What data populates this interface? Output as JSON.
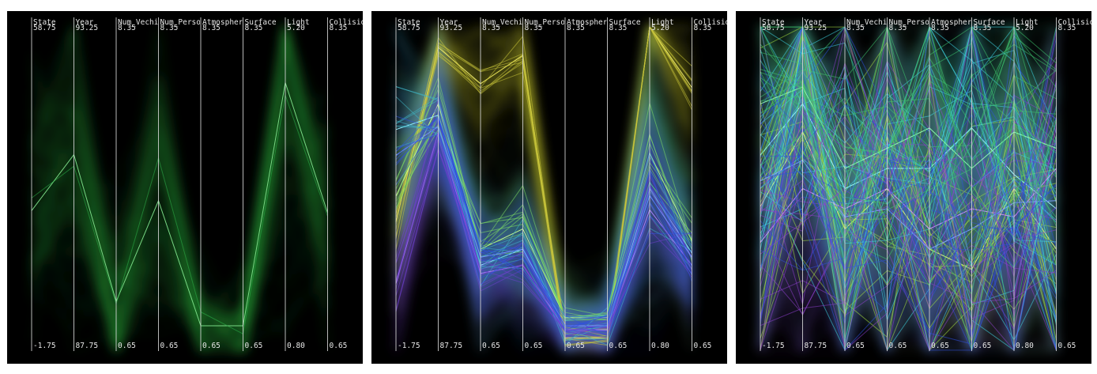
{
  "chart_data": [
    {
      "type": "parallel-coordinates",
      "colors": [
        "#2db34a"
      ],
      "axes": [
        {
          "name": "State",
          "max_label": "58.75",
          "min_label": "-1.75",
          "range": [
            -1.75,
            58.75
          ]
        },
        {
          "name": "Year",
          "max_label": "93.25",
          "min_label": "87.75",
          "range": [
            87.75,
            93.25
          ]
        },
        {
          "name": "Num_Vechi",
          "max_label": "8.35",
          "min_label": "0.65",
          "range": [
            0.65,
            8.35
          ]
        },
        {
          "name": "Num_Perso",
          "max_label": "8.35",
          "min_label": "0.65",
          "range": [
            0.65,
            8.35
          ]
        },
        {
          "name": "Atmospher",
          "max_label": "8.35",
          "min_label": "0.65",
          "range": [
            0.65,
            8.35
          ]
        },
        {
          "name": "Surface",
          "max_label": "8.35",
          "min_label": "0.65",
          "range": [
            0.65,
            8.35
          ]
        },
        {
          "name": "Light",
          "max_label": "5.20",
          "min_label": "0.80",
          "range": [
            0.8,
            5.2
          ]
        },
        {
          "name": "Collisio",
          "max_label": "8.35",
          "min_label": "0.65",
          "range": [
            0.65,
            8.35
          ]
        }
      ],
      "clusters": [
        {
          "color": "#2db34a",
          "bright": "#7de08a",
          "center": [
            24.2,
            91.1,
            1.7,
            4.2,
            1.1,
            1.1,
            4.5,
            3.9
          ],
          "spread": [
            15,
            1.7,
            1.4,
            2.0,
            0.7,
            0.7,
            1.5,
            1.4
          ]
        }
      ]
    },
    {
      "type": "parallel-coordinates",
      "colors": [
        "#c8c43a",
        "#7fe060",
        "#40b8c8",
        "#7040d0",
        "#3050e0"
      ],
      "axes": [
        {
          "name": "State",
          "max_label": "58.75",
          "min_label": "-1.75",
          "range": [
            -1.75,
            58.75
          ]
        },
        {
          "name": "Year",
          "max_label": "93.25",
          "min_label": "87.75",
          "range": [
            87.75,
            93.25
          ]
        },
        {
          "name": "Num_Vechi",
          "max_label": "8.35",
          "min_label": "0.65",
          "range": [
            0.65,
            8.35
          ]
        },
        {
          "name": "Num_Perso",
          "max_label": "8.35",
          "min_label": "0.65",
          "range": [
            0.65,
            8.35
          ]
        },
        {
          "name": "Atmospher",
          "max_label": "8.35",
          "min_label": "0.65",
          "range": [
            0.65,
            8.35
          ]
        },
        {
          "name": "Surface",
          "max_label": "8.35",
          "min_label": "0.65",
          "range": [
            0.65,
            8.35
          ]
        },
        {
          "name": "Light",
          "max_label": "5.20",
          "min_label": "0.80",
          "range": [
            0.8,
            5.2
          ]
        },
        {
          "name": "Collisio",
          "max_label": "8.35",
          "min_label": "0.65",
          "range": [
            0.65,
            8.35
          ]
        }
      ],
      "clusters": [
        {
          "color": "#c8c43a",
          "bright": "#f4f070",
          "center": [
            22,
            93.0,
            7.1,
            7.8,
            0.8,
            0.8,
            6.1,
            7.0
          ],
          "spread": [
            8,
            0.4,
            0.9,
            0.7,
            0.3,
            0.3,
            0.9,
            1.0
          ]
        },
        {
          "color": "#7fe060",
          "bright": "#c8ff90",
          "center": [
            27,
            92.0,
            3.0,
            3.5,
            1.3,
            1.3,
            3.5,
            3.2
          ],
          "spread": [
            12,
            0.8,
            1.0,
            1.0,
            0.6,
            0.6,
            1.0,
            1.0
          ]
        },
        {
          "color": "#40b8c8",
          "bright": "#90f0ff",
          "center": [
            40,
            91.8,
            2.6,
            3.0,
            1.1,
            1.1,
            3.0,
            2.9
          ],
          "spread": [
            12,
            0.8,
            0.9,
            0.9,
            0.5,
            0.5,
            0.9,
            0.9
          ]
        },
        {
          "color": "#7040d0",
          "bright": "#b080ff",
          "center": [
            10,
            91.5,
            2.4,
            2.6,
            1.0,
            1.0,
            2.7,
            2.6
          ],
          "spread": [
            8,
            0.8,
            0.8,
            0.8,
            0.4,
            0.4,
            0.8,
            0.8
          ]
        },
        {
          "color": "#3050e0",
          "bright": "#7090ff",
          "center": [
            35,
            91.6,
            2.8,
            3.0,
            1.1,
            1.1,
            2.9,
            2.8
          ],
          "spread": [
            10,
            0.8,
            0.9,
            0.9,
            0.5,
            0.5,
            0.9,
            0.9
          ]
        }
      ]
    },
    {
      "type": "parallel-coordinates",
      "colors": [
        "#a6e040",
        "#40d8e8",
        "#9040d0",
        "#3050e0",
        "#40c870"
      ],
      "axes": [
        {
          "name": "State",
          "max_label": "58.75",
          "min_label": "-1.75",
          "range": [
            -1.75,
            58.75
          ]
        },
        {
          "name": "Year",
          "max_label": "93.25",
          "min_label": "87.75",
          "range": [
            87.75,
            93.25
          ]
        },
        {
          "name": "Num_Vechi",
          "max_label": "8.35",
          "min_label": "0.65",
          "range": [
            0.65,
            8.35
          ]
        },
        {
          "name": "Num_Perso",
          "max_label": "8.35",
          "min_label": "0.65",
          "range": [
            0.65,
            8.35
          ]
        },
        {
          "name": "Atmospher",
          "max_label": "8.35",
          "min_label": "0.65",
          "range": [
            0.65,
            8.35
          ]
        },
        {
          "name": "Surface",
          "max_label": "8.35",
          "min_label": "0.65",
          "range": [
            0.65,
            8.35
          ]
        },
        {
          "name": "Light",
          "max_label": "5.20",
          "min_label": "0.80",
          "range": [
            0.8,
            5.2
          ]
        },
        {
          "name": "Collisio",
          "max_label": "8.35",
          "min_label": "0.65",
          "range": [
            0.65,
            8.35
          ]
        }
      ],
      "clusters": [
        {
          "color": "#a6e040",
          "bright": "#e0ff80",
          "center": [
            25,
            91.5,
            3.5,
            4.5,
            3.0,
            2.5,
            3.0,
            3.0
          ],
          "spread": [
            20,
            1.6,
            2.2,
            2.5,
            2.5,
            2.2,
            1.4,
            2.0
          ]
        },
        {
          "color": "#40d8e8",
          "bright": "#a0faff",
          "center": [
            35,
            92.0,
            4.5,
            5.0,
            5.0,
            6.0,
            3.2,
            4.0
          ],
          "spread": [
            18,
            1.3,
            2.2,
            2.4,
            2.5,
            2.3,
            1.3,
            2.2
          ]
        },
        {
          "color": "#9040d0",
          "bright": "#d090ff",
          "center": [
            18,
            90.5,
            4.0,
            4.5,
            3.5,
            4.0,
            2.6,
            5.0
          ],
          "spread": [
            18,
            1.8,
            2.5,
            2.6,
            2.6,
            2.5,
            1.3,
            2.4
          ]
        },
        {
          "color": "#3050e0",
          "bright": "#80a0ff",
          "center": [
            30,
            91.0,
            3.8,
            4.0,
            3.0,
            3.5,
            2.8,
            4.2
          ],
          "spread": [
            18,
            1.6,
            2.3,
            2.3,
            2.4,
            2.3,
            1.2,
            2.2
          ]
        },
        {
          "color": "#40c870",
          "bright": "#90ffb0",
          "center": [
            45,
            92.3,
            5.0,
            5.5,
            6.0,
            5.0,
            3.8,
            5.5
          ],
          "spread": [
            14,
            1.2,
            2.0,
            2.0,
            2.0,
            2.0,
            1.1,
            2.0
          ]
        }
      ]
    }
  ]
}
